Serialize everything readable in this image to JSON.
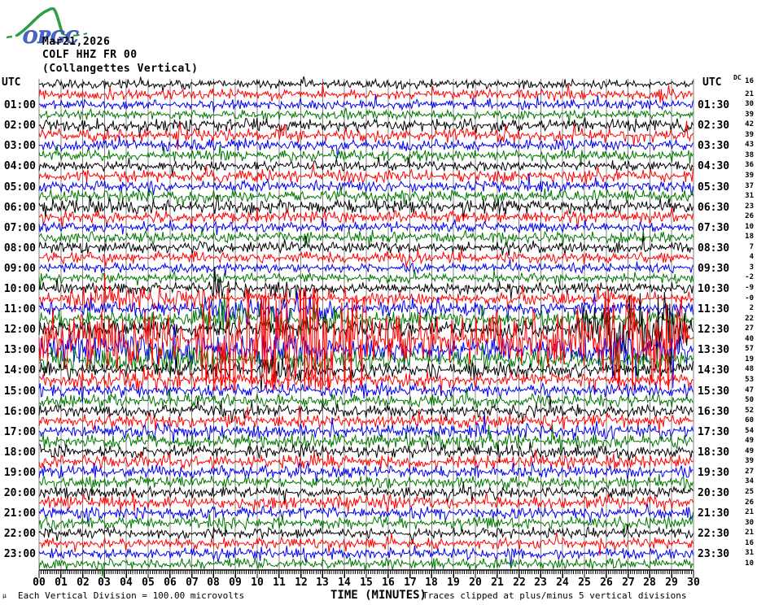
{
  "header": {
    "logo_text": "OPGC",
    "date": "Mar21,2026",
    "station": "COLF HHZ FR 00",
    "station_name": "(Collangettes Vertical)"
  },
  "axis": {
    "utc_left": "UTC",
    "utc_right": "UTC",
    "dc_label": "DC",
    "xlabel": "TIME (MINUTES)"
  },
  "footer": {
    "division_note": "Each Vertical Division =  100.00 microvolts",
    "clip_note": "Traces clipped at plus/minus 5 vertical divisions",
    "corner_mark": "µ"
  },
  "chart_data": {
    "type": "line",
    "subtype": "helicorder-seismogram",
    "title": "COLF HHZ FR 00 (Collangettes Vertical) Mar21,2026",
    "xlabel": "TIME (MINUTES)",
    "x_range_minutes": [
      0,
      30
    ],
    "minutes_per_line": 30,
    "num_lines": 48,
    "clip_divisions": 5,
    "division_value": "100.00 microvolts",
    "grid": true,
    "grid_color": "#808080",
    "color_cycle": [
      "#000000",
      "#ff0000",
      "#0000ee",
      "#007700"
    ],
    "minute_labels": [
      "00",
      "01",
      "02",
      "03",
      "04",
      "05",
      "06",
      "07",
      "08",
      "09",
      "10",
      "11",
      "12",
      "13",
      "14",
      "15",
      "16",
      "17",
      "18",
      "19",
      "20",
      "21",
      "22",
      "23",
      "24",
      "25",
      "26",
      "27",
      "28",
      "29",
      "30"
    ],
    "left_time_labels": [
      "01:00",
      "02:00",
      "03:00",
      "04:00",
      "05:00",
      "06:00",
      "07:00",
      "08:00",
      "09:00",
      "10:00",
      "11:00",
      "12:00",
      "13:00",
      "14:00",
      "15:00",
      "16:00",
      "17:00",
      "18:00",
      "19:00",
      "20:00",
      "21:00",
      "22:00",
      "23:00"
    ],
    "right_time_labels": [
      "01:30",
      "02:30",
      "03:30",
      "04:30",
      "05:30",
      "06:30",
      "07:30",
      "08:30",
      "09:30",
      "10:30",
      "11:30",
      "12:30",
      "13:30",
      "14:30",
      "15:30",
      "16:30",
      "17:30",
      "18:30",
      "19:30",
      "20:30",
      "21:30",
      "22:30",
      "23:30"
    ],
    "dc_values_per_line": [
      "16",
      "21",
      "30",
      "39",
      "42",
      "39",
      "43",
      "38",
      "36",
      "39",
      "37",
      "31",
      "23",
      "26",
      "10",
      "18",
      "7",
      "4",
      "3",
      "-2",
      "-9",
      "-0",
      "2",
      "22",
      "27",
      "40",
      "57",
      "19",
      "48",
      "53",
      "47",
      "50",
      "52",
      "60",
      "54",
      "49",
      "49",
      "39",
      "27",
      "34",
      "25",
      "26",
      "21",
      "30",
      "21",
      "16",
      "31",
      "10"
    ],
    "background_amplitude_divisions": [
      0.3,
      0.32,
      0.3,
      0.3,
      0.42,
      0.45,
      0.36,
      0.36,
      0.32,
      0.4,
      0.36,
      0.4,
      0.45,
      0.4,
      0.32,
      0.36,
      0.36,
      0.36,
      0.3,
      0.32,
      0.36,
      0.42,
      0.46,
      0.52,
      0.55,
      1.3,
      0.85,
      0.62,
      0.5,
      0.46,
      0.42,
      0.4,
      0.4,
      0.42,
      0.46,
      0.46,
      0.42,
      0.4,
      0.4,
      0.4,
      0.36,
      0.4,
      0.4,
      0.4,
      0.36,
      0.36,
      0.36,
      0.36
    ],
    "events": [
      {
        "line": 20,
        "start": 7.5,
        "end": 13,
        "amp": 0.45
      },
      {
        "line": 21,
        "start": 1,
        "end": 8,
        "amp": 0.45
      },
      {
        "line": 22,
        "start": 7,
        "end": 14,
        "amp": 0.5
      },
      {
        "line": 23,
        "start": 7,
        "end": 15,
        "amp": 0.55
      },
      {
        "line": 24,
        "start": 24.5,
        "end": 30,
        "amp": 1.7
      },
      {
        "line": 25,
        "start": 0,
        "end": 7,
        "amp": 0.6
      },
      {
        "line": 25,
        "start": 7,
        "end": 15.5,
        "amp": 3.7
      },
      {
        "line": 25,
        "start": 15.5,
        "end": 25.5,
        "amp": 0.5
      },
      {
        "line": 25,
        "start": 25.5,
        "end": 30,
        "amp": 2.3
      },
      {
        "line": 26,
        "start": 0,
        "end": 12,
        "amp": 0.25
      },
      {
        "line": 26,
        "start": 25,
        "end": 30,
        "amp": 0.4
      },
      {
        "line": 27,
        "start": 0,
        "end": 8,
        "amp": 0.3
      },
      {
        "line": 28,
        "start": 9.5,
        "end": 13,
        "amp": 0.5
      },
      {
        "line": 29,
        "start": 1,
        "end": 7,
        "amp": 0.35
      }
    ]
  }
}
